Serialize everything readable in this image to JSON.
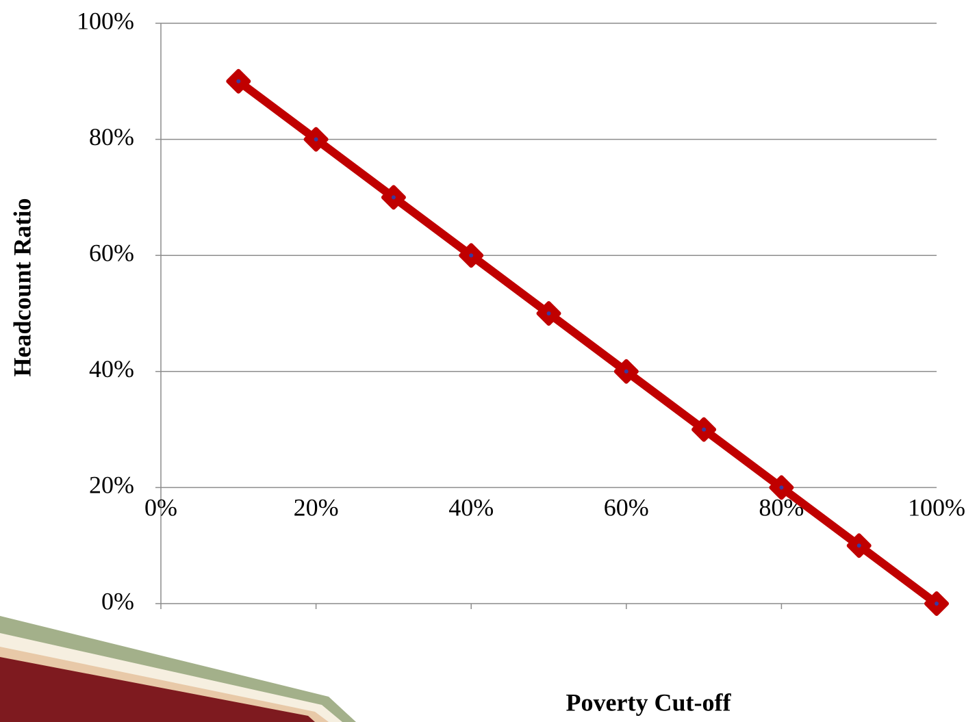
{
  "chart_data": {
    "type": "line",
    "xlabel": "Poverty Cut-off",
    "ylabel": "Headcount Ratio",
    "x": [
      10,
      20,
      30,
      40,
      50,
      60,
      70,
      80,
      90,
      100
    ],
    "values": [
      90,
      80,
      70,
      60,
      50,
      40,
      30,
      20,
      10,
      0
    ],
    "color": "#c00000",
    "marker_center_color": "#3a3aa0",
    "xlim": [
      0,
      100
    ],
    "ylim": [
      0,
      100
    ],
    "xticks": [
      {
        "value": 0,
        "label": "0%"
      },
      {
        "value": 20,
        "label": "20%"
      },
      {
        "value": 40,
        "label": "40%"
      },
      {
        "value": 60,
        "label": "60%"
      },
      {
        "value": 80,
        "label": "80%"
      },
      {
        "value": 100,
        "label": "100%"
      }
    ],
    "yticks": [
      {
        "value": 0,
        "label": "0%"
      },
      {
        "value": 20,
        "label": "20%"
      },
      {
        "value": 40,
        "label": "40%"
      },
      {
        "value": 60,
        "label": "60%"
      },
      {
        "value": 80,
        "label": "80%"
      },
      {
        "value": 100,
        "label": "100%"
      }
    ],
    "grid": true
  }
}
